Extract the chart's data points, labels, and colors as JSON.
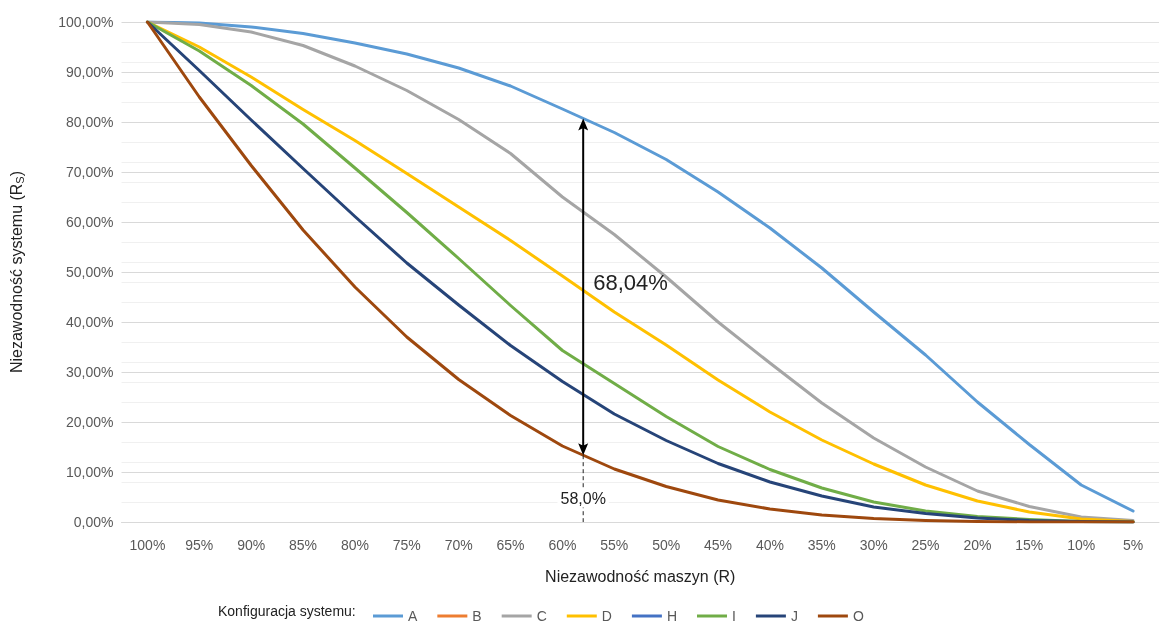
{
  "chart_data": {
    "type": "line",
    "xlabel": "Niezawodność maszyn (R)",
    "ylabel": "Niezawodność systemu (R$_{S}$)",
    "legend_title": "Konfiguracja systemu:",
    "x": [
      100,
      95,
      90,
      85,
      80,
      75,
      70,
      65,
      60,
      55,
      50,
      45,
      40,
      35,
      30,
      25,
      20,
      15,
      10,
      5
    ],
    "xlim": [
      102.5,
      2.5
    ],
    "xticks": [
      {
        "value": 100,
        "label": "100%"
      },
      {
        "value": 95,
        "label": "95%"
      },
      {
        "value": 90,
        "label": "90%"
      },
      {
        "value": 85,
        "label": "85%"
      },
      {
        "value": 80,
        "label": "80%"
      },
      {
        "value": 75,
        "label": "75%"
      },
      {
        "value": 70,
        "label": "70%"
      },
      {
        "value": 65,
        "label": "65%"
      },
      {
        "value": 60,
        "label": "60%"
      },
      {
        "value": 55,
        "label": "55%"
      },
      {
        "value": 50,
        "label": "50%"
      },
      {
        "value": 45,
        "label": "45%"
      },
      {
        "value": 40,
        "label": "40%"
      },
      {
        "value": 35,
        "label": "35%"
      },
      {
        "value": 30,
        "label": "30%"
      },
      {
        "value": 25,
        "label": "25%"
      },
      {
        "value": 20,
        "label": "20%"
      },
      {
        "value": 15,
        "label": "15%"
      },
      {
        "value": 10,
        "label": "10%"
      },
      {
        "value": 5,
        "label": "5%"
      }
    ],
    "ylim": [
      0,
      100
    ],
    "yticks": [
      {
        "value": 0,
        "label": "0,00%"
      },
      {
        "value": 10,
        "label": "10,00%"
      },
      {
        "value": 20,
        "label": "20,00%"
      },
      {
        "value": 30,
        "label": "30,00%"
      },
      {
        "value": 40,
        "label": "40,00%"
      },
      {
        "value": 50,
        "label": "50,00%"
      },
      {
        "value": 60,
        "label": "60,00%"
      },
      {
        "value": 70,
        "label": "70,00%"
      },
      {
        "value": 80,
        "label": "80,00%"
      },
      {
        "value": 90,
        "label": "90,00%"
      },
      {
        "value": 100,
        "label": "100,00%"
      }
    ],
    "grid": "y",
    "legend": "bottom",
    "marker": "none",
    "line_style": "solid",
    "annotations": [
      {
        "text": "68,04%",
        "x": 58,
        "y": 48
      }
    ],
    "ref_lines": [
      {
        "axis": "x",
        "value": 58,
        "label": "58,0%",
        "line_style": "dashed"
      }
    ],
    "series": [
      {
        "name": "A",
        "color": "#5b9bd5",
        "values": [
          100,
          99.8,
          99,
          97.7,
          95.8,
          93.6,
          90.8,
          87.2,
          82.6,
          77.9,
          72.5,
          66,
          58.8,
          50.8,
          42,
          33.4,
          24,
          15.5,
          7.4,
          2.2
        ]
      },
      {
        "name": "B",
        "color": "#ed7d31",
        "values": [
          null,
          null,
          null,
          null,
          null,
          null,
          null,
          null,
          null,
          null,
          null,
          null,
          null,
          null,
          null,
          null,
          null,
          null,
          null,
          null
        ]
      },
      {
        "name": "C",
        "color": "#a5a5a5",
        "values": [
          100,
          99.5,
          98,
          95.3,
          91.2,
          86.3,
          80.5,
          73.7,
          65,
          57.5,
          49,
          40,
          31.8,
          23.8,
          16.8,
          11,
          6.2,
          3.1,
          1,
          0.3
        ]
      },
      {
        "name": "D",
        "color": "#ffc000",
        "values": [
          100,
          95,
          89,
          82.5,
          76.3,
          69.7,
          63,
          56.3,
          49.2,
          42,
          35.4,
          28.4,
          22,
          16.4,
          11.6,
          7.4,
          4.2,
          2,
          0.6,
          0.1
        ]
      },
      {
        "name": "H",
        "color": "#4472c4",
        "values": [
          null,
          null,
          null,
          null,
          null,
          null,
          null,
          null,
          null,
          null,
          null,
          null,
          null,
          null,
          null,
          null,
          null,
          null,
          null,
          null
        ]
      },
      {
        "name": "I",
        "color": "#70ad47",
        "values": [
          100,
          94.2,
          87.3,
          79.6,
          70.8,
          61.9,
          52.7,
          43.3,
          34.3,
          27.7,
          21.1,
          15.1,
          10.5,
          6.8,
          4,
          2.2,
          1.1,
          0.5,
          0.1,
          0
        ]
      },
      {
        "name": "J",
        "color": "#264478",
        "values": [
          100,
          90.3,
          80.4,
          70.7,
          61.1,
          51.8,
          43.4,
          35.3,
          28.1,
          21.6,
          16.3,
          11.7,
          8,
          5.2,
          3,
          1.7,
          0.8,
          0.3,
          0.1,
          0
        ]
      },
      {
        "name": "O",
        "color": "#9e480e",
        "values": [
          100,
          85,
          71.3,
          58.4,
          47,
          37,
          28.5,
          21.3,
          15.2,
          10.6,
          7.1,
          4.4,
          2.6,
          1.4,
          0.7,
          0.3,
          0.1,
          0,
          0,
          0
        ]
      }
    ]
  }
}
